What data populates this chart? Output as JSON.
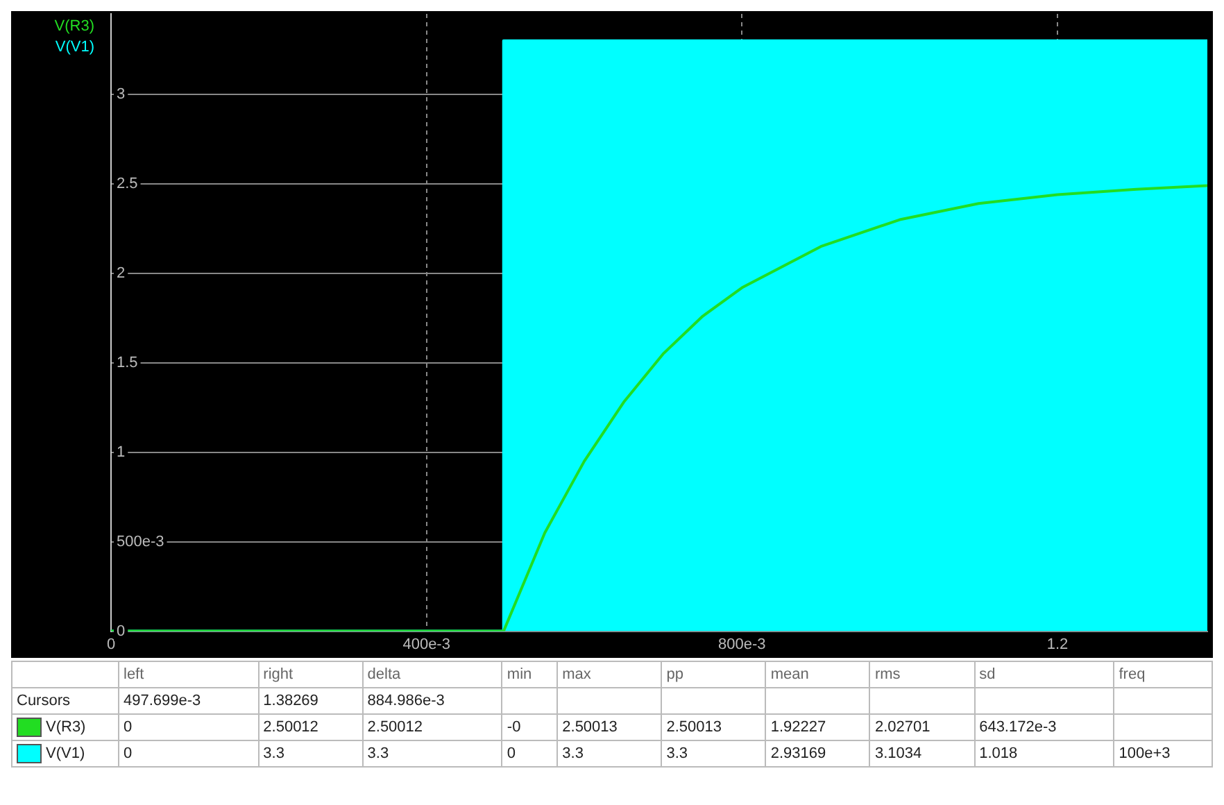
{
  "chart_data": {
    "type": "line",
    "xlim": [
      0,
      1.39
    ],
    "ylim": [
      0,
      3.45
    ],
    "xticks": [
      0,
      {
        "value": 0.4,
        "label": "400e-3"
      },
      {
        "value": 0.8,
        "label": "800e-3"
      },
      1.2
    ],
    "yticks": [
      0,
      {
        "value": 0.5,
        "label": "500e-3"
      },
      1,
      1.5,
      2,
      2.5,
      3
    ],
    "grid": true,
    "legend": "top left",
    "marker": "none",
    "line_style": "solid",
    "series": [
      {
        "name": "V(R3)",
        "color": "#22dd22",
        "x": [
          0,
          0.4977,
          0.55,
          0.6,
          0.65,
          0.7,
          0.75,
          0.8,
          0.9,
          1.0,
          1.1,
          1.2,
          1.3,
          1.39
        ],
        "values": [
          0,
          0,
          0.55,
          0.95,
          1.28,
          1.55,
          1.76,
          1.92,
          2.15,
          2.3,
          2.39,
          2.44,
          2.47,
          2.49
        ]
      },
      {
        "name": "V(V1)",
        "type": "area",
        "color": "#00ffff",
        "x": [
          0,
          0.4977,
          0.4977,
          1.39
        ],
        "values": [
          0,
          0,
          3.3,
          3.3
        ]
      }
    ],
    "annotations": [
      "\tleft\tright\tdelta\tmin\tmax\tpp\tmean\trms\tsd\tfreq",
      "Cursors\t497.699e-3\t1.38269\t884.986e-3\t\t\t\t\t\t\t",
      "V(R3)\t0\t2.50012\t2.50012\t-0\t2.50013\t2.50013\t1.92227\t2.02701\t643.172e-3\t",
      "V(V1)\t0\t3.3\t3.3\t0\t3.3\t3.3\t2.93169\t3.1034\t1.018\t100e+3"
    ]
  }
}
